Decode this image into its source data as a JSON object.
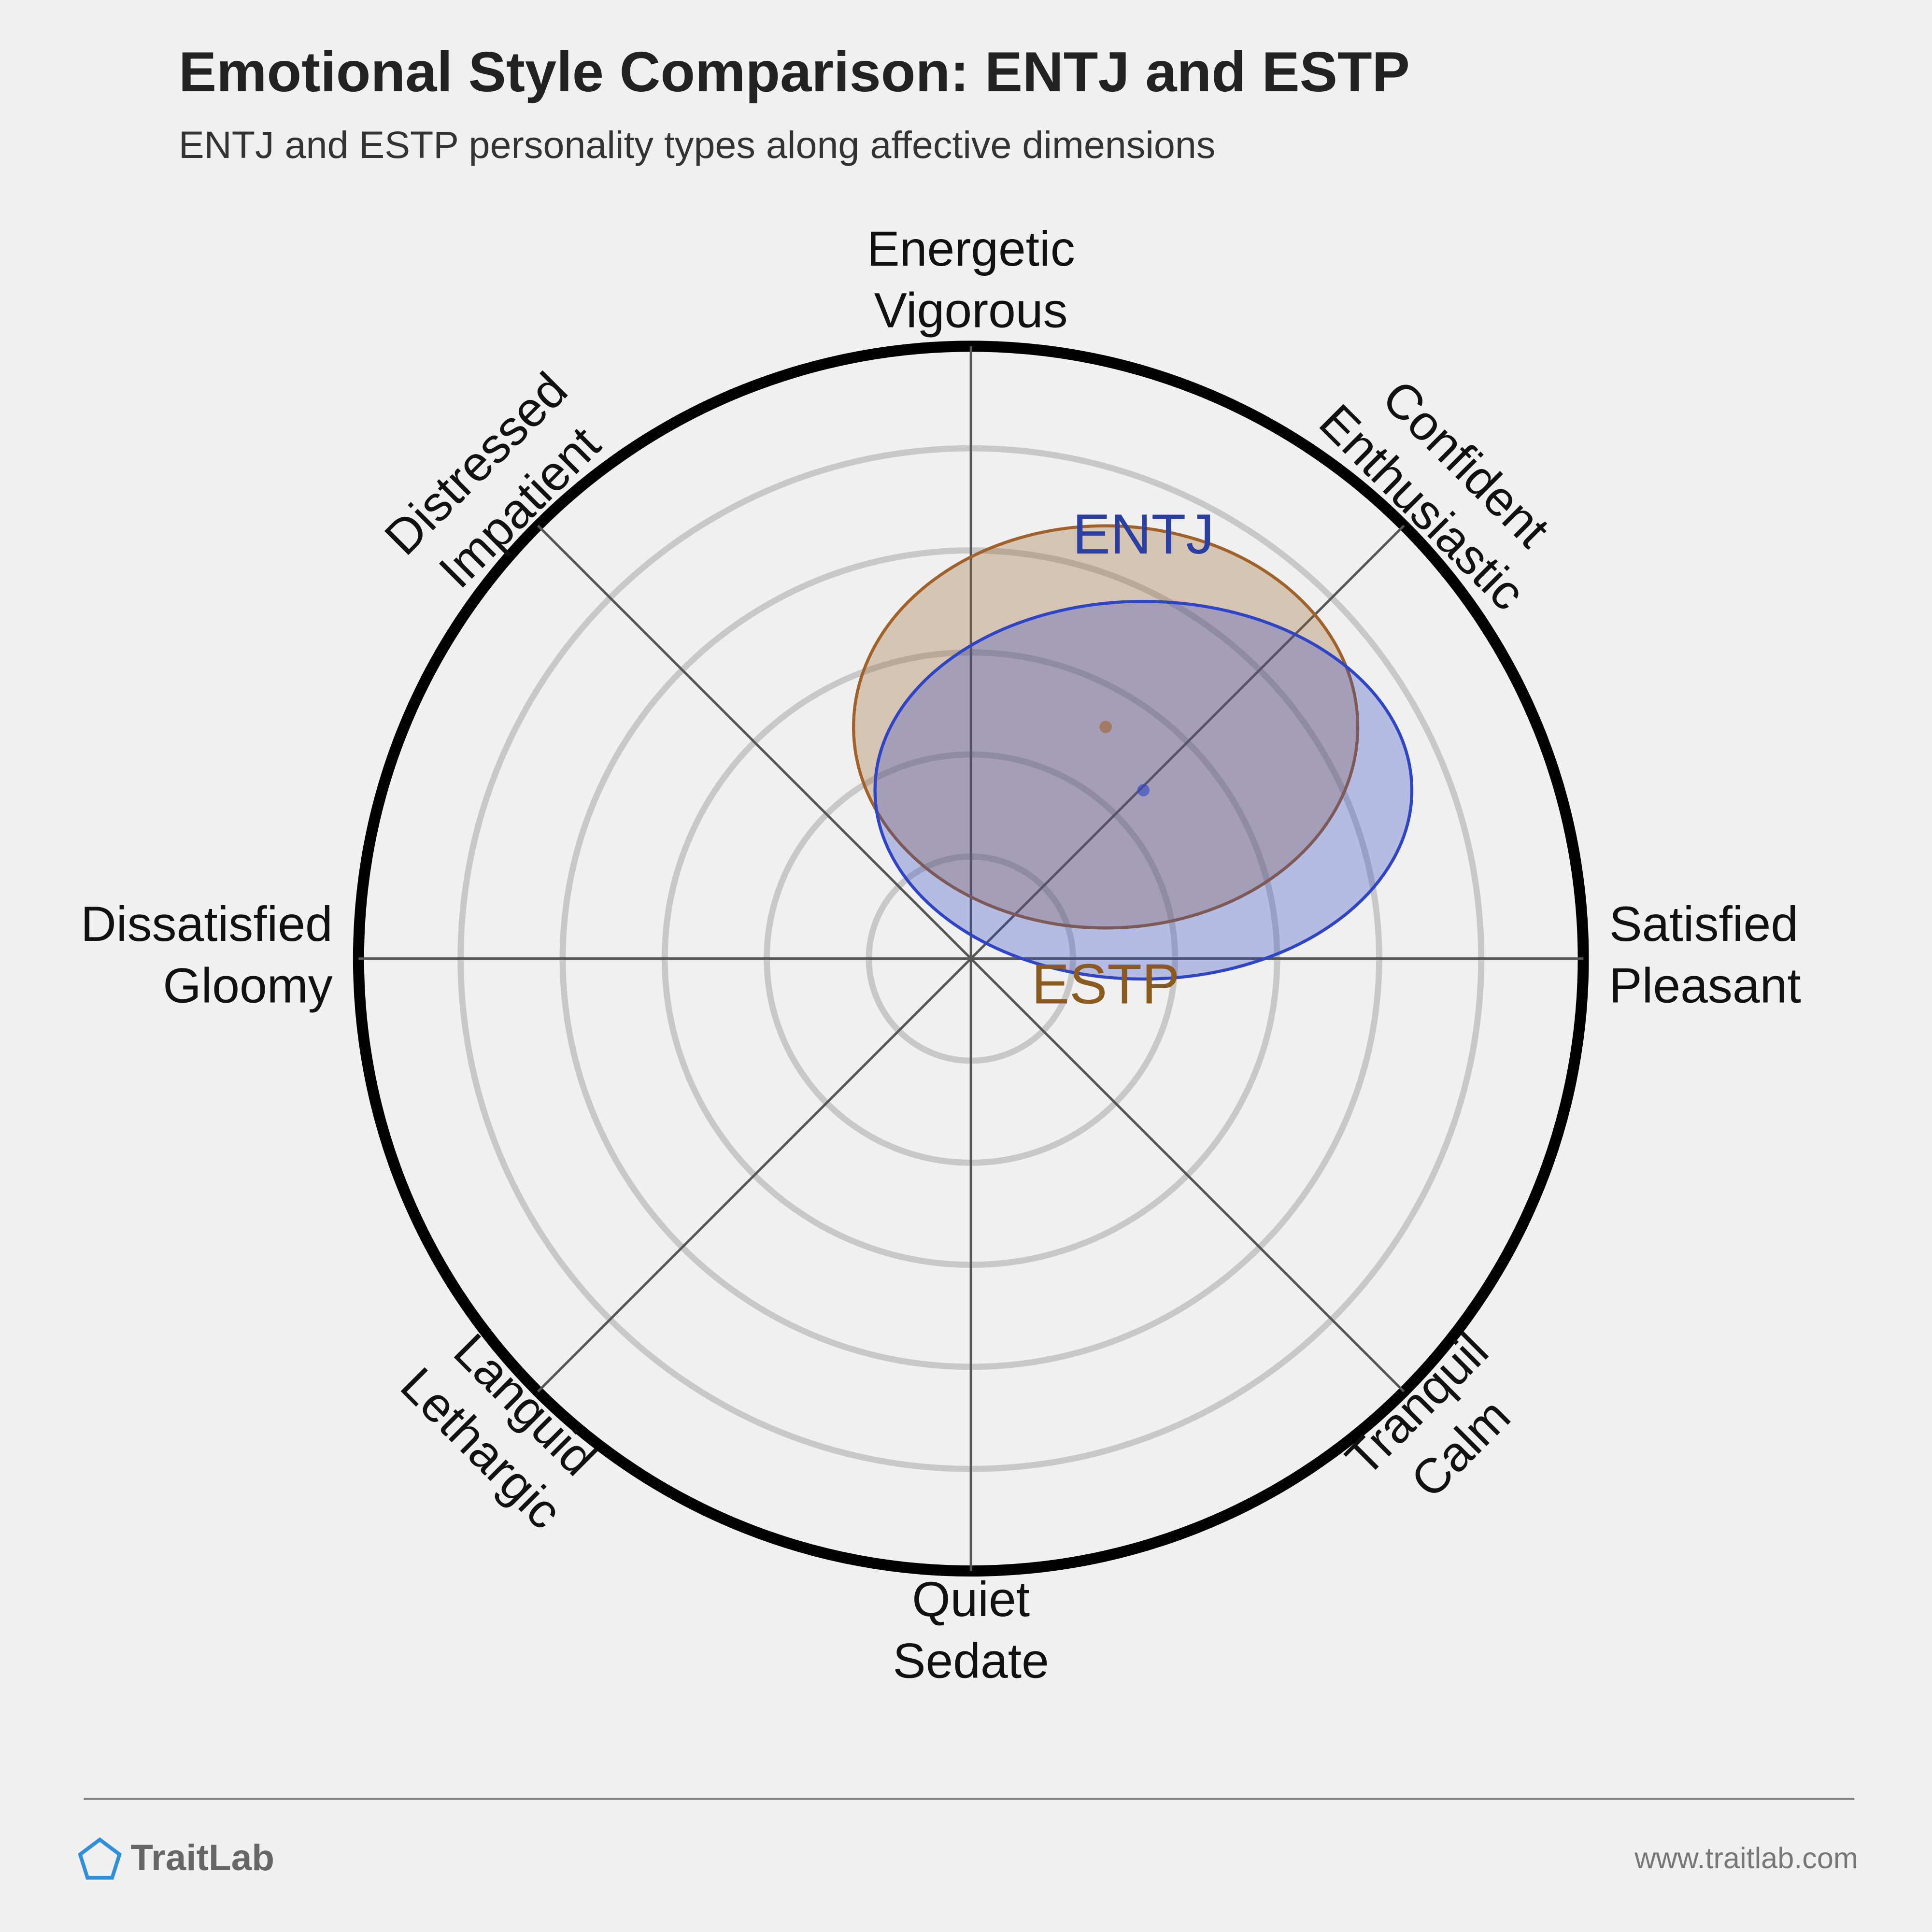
{
  "chart_data": {
    "type": "circumplex",
    "title": "Emotional Style Comparison: ENTJ and ESTP",
    "subtitle": "ENTJ and ESTP personality types along affective dimensions",
    "axes": [
      [
        "Energetic",
        "Vigorous"
      ],
      [
        "Confident",
        "Enthusiastic"
      ],
      [
        "Satisfied",
        "Pleasant"
      ],
      [
        "Tranquil",
        "Calm"
      ],
      [
        "Quiet",
        "Sedate"
      ],
      [
        "Languid",
        "Lethargic"
      ],
      [
        "Dissatisfied",
        "Gloomy"
      ],
      [
        "Distressed",
        "Impatient"
      ]
    ],
    "rlim": [
      0,
      6
    ],
    "rings": [
      1,
      2,
      3,
      4,
      5
    ],
    "series": [
      {
        "name": "ESTP",
        "color": "#a0622a",
        "label_color": "#8b5a1e",
        "x": 1.32,
        "y": 2.27,
        "rx": 2.47,
        "ry": 1.97
      },
      {
        "name": "ENTJ",
        "color": "#2f45c5",
        "label_color": "#2a3fa0",
        "x": 1.69,
        "y": 1.65,
        "rx": 2.63,
        "ry": 1.85
      }
    ]
  },
  "footer": {
    "brand": "TraitLab",
    "url": "www.traitlab.com"
  }
}
